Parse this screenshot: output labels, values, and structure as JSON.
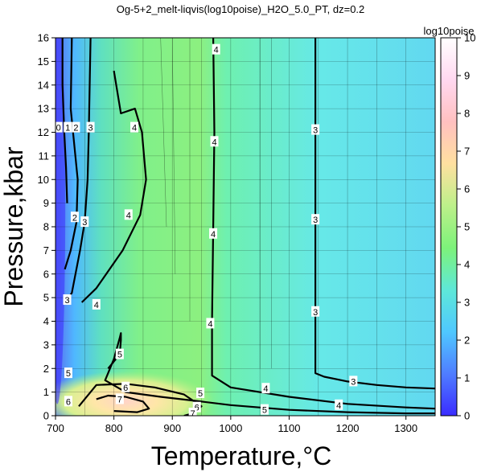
{
  "chart_data": {
    "type": "heatmap",
    "title": "Og-5+2_melt-liqvis(log10poise)_H2O_5.0_PT, dz=0.2",
    "xlabel": "Temperature,°C",
    "ylabel": "Pressure,kbar",
    "xlim": [
      700,
      1350
    ],
    "ylim": [
      0,
      16
    ],
    "x_ticks": [
      700,
      800,
      900,
      1000,
      1100,
      1200,
      1300
    ],
    "y_ticks": [
      0,
      1,
      2,
      3,
      4,
      5,
      6,
      7,
      8,
      9,
      10,
      11,
      12,
      13,
      14,
      15,
      16
    ],
    "grid": true,
    "colorbar": {
      "label": "log10poise",
      "range": [
        0,
        10
      ],
      "ticks": [
        0,
        1,
        2,
        3,
        4,
        5,
        6,
        7,
        8,
        9,
        10
      ],
      "colors": [
        "#3a2cff",
        "#4f7dff",
        "#4fc8ff",
        "#5ee8d8",
        "#7df27a",
        "#bdf08a",
        "#ffe0a0",
        "#ffc0c0",
        "#ffd8f0",
        "#ffffff"
      ]
    },
    "contours": [
      {
        "level": 3,
        "points": [
          [
            1145,
            16
          ],
          [
            1145,
            12
          ],
          [
            1145,
            8
          ],
          [
            1145,
            4
          ],
          [
            1145,
            1.8
          ],
          [
            1160,
            1.65
          ],
          [
            1200,
            1.45
          ],
          [
            1250,
            1.3
          ],
          [
            1300,
            1.2
          ],
          [
            1350,
            1.15
          ]
        ]
      },
      {
        "level": 4,
        "points": [
          [
            970,
            16
          ],
          [
            972,
            12
          ],
          [
            970,
            8
          ],
          [
            968,
            4
          ],
          [
            968,
            1.7
          ],
          [
            1000,
            1.2
          ],
          [
            1100,
            0.8
          ],
          [
            1200,
            0.5
          ],
          [
            1300,
            0.35
          ],
          [
            1350,
            0.3
          ]
        ]
      },
      {
        "level": 4,
        "points": [
          [
            800,
            14.6
          ],
          [
            812,
            12.8
          ],
          [
            836,
            13.0
          ],
          [
            848,
            12.0
          ],
          [
            855,
            10.0
          ],
          [
            845,
            8.5
          ],
          [
            815,
            7.0
          ],
          [
            770,
            5.4
          ],
          [
            745,
            4.8
          ]
        ]
      },
      {
        "level": 3,
        "points": [
          [
            760,
            16
          ],
          [
            757,
            12
          ],
          [
            755,
            10
          ],
          [
            750,
            8.2
          ],
          [
            742,
            7.0
          ],
          [
            728,
            5.2
          ],
          [
            716,
            4.8
          ]
        ]
      },
      {
        "level": 2,
        "points": [
          [
            728,
            16
          ],
          [
            726,
            13
          ],
          [
            730,
            12
          ],
          [
            738,
            10
          ],
          [
            736,
            8.2
          ],
          [
            726,
            7.0
          ],
          [
            716,
            6.2
          ]
        ]
      },
      {
        "level": 1,
        "points": [
          [
            712,
            16
          ],
          [
            712,
            14
          ],
          [
            715,
            12
          ],
          [
            718,
            10.5
          ],
          [
            720,
            9.0
          ]
        ]
      },
      {
        "level": 5,
        "points": [
          [
            790,
            2.0
          ],
          [
            810,
            2.6
          ],
          [
            812,
            3.2
          ],
          [
            812,
            3.5
          ],
          [
            810,
            3.3
          ],
          [
            800,
            2.4
          ],
          [
            790,
            1.8
          ],
          [
            785,
            1.5
          ],
          [
            820,
            1.0
          ],
          [
            880,
            0.8
          ],
          [
            950,
            0.6
          ],
          [
            1000,
            0.45
          ],
          [
            1100,
            0.25
          ],
          [
            1200,
            0.15
          ],
          [
            1300,
            0.1
          ],
          [
            1350,
            0.1
          ]
        ]
      },
      {
        "level": 6,
        "points": [
          [
            740,
            0.4
          ],
          [
            770,
            1.3
          ],
          [
            820,
            1.35
          ],
          [
            870,
            1.2
          ],
          [
            920,
            0.9
          ],
          [
            950,
            0.4
          ],
          [
            935,
            0.1
          ],
          [
            920,
            0.0
          ]
        ]
      },
      {
        "level": 7,
        "points": [
          [
            770,
            0.7
          ],
          [
            790,
            0.85
          ],
          [
            820,
            0.8
          ],
          [
            850,
            0.6
          ],
          [
            860,
            0.3
          ],
          [
            840,
            0.15
          ],
          [
            800,
            0.2
          ]
        ]
      }
    ],
    "contour_labels": [
      {
        "text": "4",
        "x": 975,
        "y": 15.5
      },
      {
        "text": "4",
        "x": 972,
        "y": 11.6
      },
      {
        "text": "4",
        "x": 970,
        "y": 7.7
      },
      {
        "text": "4",
        "x": 965,
        "y": 3.9
      },
      {
        "text": "3",
        "x": 1145,
        "y": 12.1
      },
      {
        "text": "3",
        "x": 1145,
        "y": 8.3
      },
      {
        "text": "3",
        "x": 1145,
        "y": 4.4
      },
      {
        "text": "3",
        "x": 1210,
        "y": 1.45
      },
      {
        "text": "4",
        "x": 1185,
        "y": 0.45
      },
      {
        "text": "4",
        "x": 1060,
        "y": 1.15
      },
      {
        "text": "4",
        "x": 835,
        "y": 12.2
      },
      {
        "text": "4",
        "x": 825,
        "y": 8.5
      },
      {
        "text": "4",
        "x": 770,
        "y": 4.7
      },
      {
        "text": "3",
        "x": 760,
        "y": 12.2
      },
      {
        "text": "3",
        "x": 750,
        "y": 8.2
      },
      {
        "text": "3",
        "x": 720,
        "y": 4.9
      },
      {
        "text": "2",
        "x": 735,
        "y": 12.2
      },
      {
        "text": "2",
        "x": 733,
        "y": 8.4
      },
      {
        "text": "1",
        "x": 721,
        "y": 12.2
      },
      {
        "text": "0",
        "x": 705,
        "y": 12.2
      },
      {
        "text": "5",
        "x": 810,
        "y": 2.6
      },
      {
        "text": "5",
        "x": 722,
        "y": 1.8
      },
      {
        "text": "6",
        "x": 820,
        "y": 1.2
      },
      {
        "text": "6",
        "x": 722,
        "y": 0.6
      },
      {
        "text": "7",
        "x": 810,
        "y": 0.7
      },
      {
        "text": "5",
        "x": 948,
        "y": 0.95
      },
      {
        "text": "6",
        "x": 942,
        "y": 0.35
      },
      {
        "text": "7",
        "x": 935,
        "y": 0.1
      },
      {
        "text": "5",
        "x": 1058,
        "y": 0.25
      }
    ]
  }
}
